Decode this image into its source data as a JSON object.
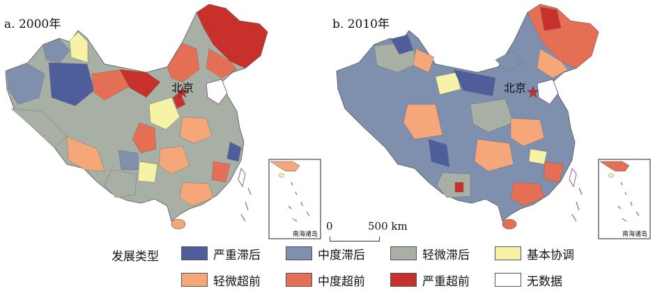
{
  "panels": [
    {
      "id": "a",
      "title": "a. 2000年",
      "capital_label": "北京",
      "inset_label": "南海诸岛"
    },
    {
      "id": "b",
      "title": "b. 2010年",
      "capital_label": "北京",
      "inset_label": "南海诸岛"
    }
  ],
  "scale": {
    "zero": "0",
    "max": "500 km"
  },
  "legend": {
    "title": "发展类型",
    "items": [
      {
        "label": "严重滞后",
        "color": "#4e5e9b"
      },
      {
        "label": "中度滞后",
        "color": "#7f8fae"
      },
      {
        "label": "轻微滞后",
        "color": "#a8b0a6"
      },
      {
        "label": "基本协调",
        "color": "#f6f3a6"
      },
      {
        "label": "轻微超前",
        "color": "#f5a77a"
      },
      {
        "label": "中度超前",
        "color": "#e56f55"
      },
      {
        "label": "严重超前",
        "color": "#c8302b"
      },
      {
        "label": "无数据",
        "color": "#ffffff"
      }
    ]
  }
}
